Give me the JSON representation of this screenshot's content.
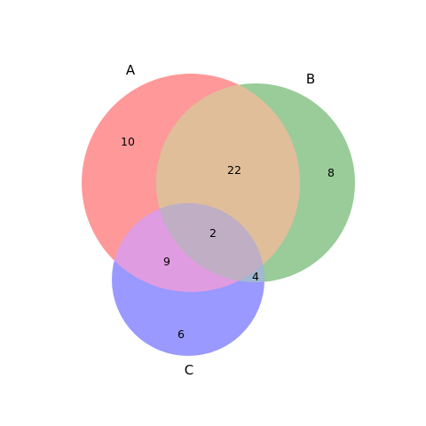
{
  "chart_data": {
    "type": "venn3",
    "sets": [
      {
        "name": "A",
        "color": "#ff0000"
      },
      {
        "name": "B",
        "color": "#008000"
      },
      {
        "name": "C",
        "color": "#0000ff"
      }
    ],
    "regions": {
      "A_only": "10",
      "B_only": "8",
      "C_only": "6",
      "AB_only": "22",
      "AC_only": "9",
      "BC_only": "4",
      "ABC": "2"
    },
    "colors": {
      "A": "#ff9999",
      "B": "#99cc99",
      "C": "#9999ff",
      "AB": "#e0be9a",
      "AC": "#e09ce0",
      "BC": "#a0b8d0",
      "ABC": "#bfaec4"
    }
  }
}
